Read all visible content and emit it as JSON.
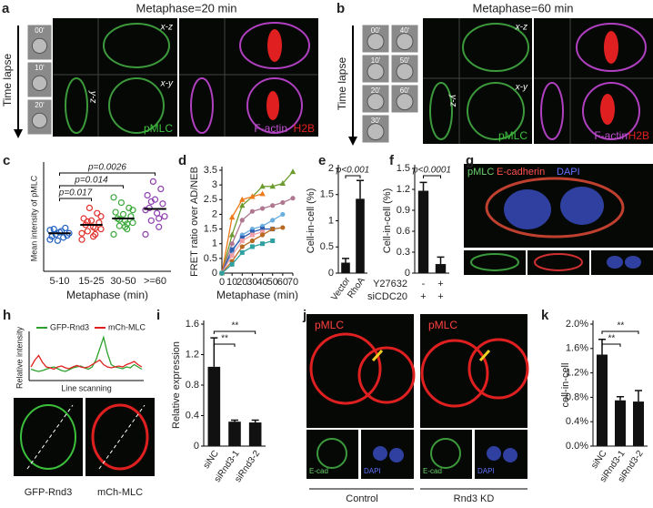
{
  "panels": {
    "a": {
      "label": "a",
      "title": "Metaphase=20 min",
      "time_axis": "Time lapse",
      "times": [
        "00'",
        "10'",
        "20'"
      ],
      "views": [
        "x-z",
        "x-y",
        "y-z"
      ],
      "stains": [
        "pMLC",
        "F-actin",
        "H2B"
      ]
    },
    "b": {
      "label": "b",
      "title": "Metaphase=60 min",
      "time_axis": "Time lapse",
      "times": [
        "00'",
        "10'",
        "20'",
        "30'",
        "40'",
        "50'",
        "60'"
      ],
      "views": [
        "x-z",
        "x-y",
        "y-z"
      ],
      "stains": [
        "pMLC",
        "F-actin",
        "H2B"
      ]
    },
    "g": {
      "label": "g",
      "stains": [
        "pMLC",
        "E-cadherin",
        "DAPI"
      ]
    },
    "h": {
      "image_labels": [
        "GFP-Rnd3",
        "mCh-MLC"
      ]
    },
    "j": {
      "label": "j",
      "stains": [
        "pMLC",
        "pMLC"
      ],
      "inset_labels": [
        "E-cad",
        "DAPI",
        "E-cad",
        "DAPI"
      ],
      "groups": [
        "Control",
        "Rnd3 KD"
      ]
    }
  },
  "chart_data": [
    {
      "type": "strip",
      "label": "c",
      "ylabel": "Mean intensity of pMLC",
      "xlabel": "Metaphase (min)",
      "categories": [
        "5-10",
        "15-25",
        "30-50",
        ">=60"
      ],
      "colors": [
        "#1f5fbf",
        "#e0302a",
        "#3aa83a",
        "#8e3fb0"
      ],
      "ylim": [
        0,
        100
      ],
      "points": [
        [
          30,
          32,
          35,
          36,
          38,
          40,
          34,
          37,
          33,
          41,
          29,
          39
        ],
        [
          30,
          35,
          38,
          40,
          42,
          44,
          46,
          48,
          50,
          55,
          60,
          36,
          41,
          47,
          52,
          33
        ],
        [
          35,
          40,
          43,
          46,
          48,
          50,
          52,
          54,
          56,
          60,
          65,
          70,
          45,
          49,
          58,
          42
        ],
        [
          35,
          42,
          48,
          52,
          55,
          60,
          64,
          68,
          72,
          78,
          85,
          58,
          50,
          66
        ]
      ],
      "means": [
        36,
        44,
        50,
        59
      ],
      "annotations": [
        "p=0.017",
        "p=0.014",
        "p=0.0026"
      ]
    },
    {
      "type": "line",
      "label": "d",
      "ylabel": "FRET ratio over AD/NEB",
      "xlabel": "Metaphase (min)",
      "x": [
        0,
        10,
        20,
        30,
        40,
        50,
        60,
        70
      ],
      "xlim": [
        0,
        70
      ],
      "xticks": [
        0,
        10,
        20,
        30,
        40,
        50,
        60,
        70
      ],
      "ylim": [
        0,
        3.5
      ],
      "yticks": [
        0,
        0.5,
        1,
        1.5,
        2,
        2.5,
        3,
        3.5
      ],
      "series": [
        {
          "color": "#6b9a2e",
          "marker": "triangle",
          "values": [
            0,
            1.3,
            2.3,
            2.6,
            2.95,
            2.95,
            3.05,
            3.45
          ]
        },
        {
          "color": "#f07a1a",
          "marker": "triangle",
          "values": [
            0,
            1.9,
            2.5,
            2.6,
            2.7,
            null,
            null,
            null
          ]
        },
        {
          "color": "#b07890",
          "marker": "circle",
          "values": [
            0,
            1.0,
            1.8,
            2.1,
            2.2,
            2.3,
            2.4,
            2.55
          ]
        },
        {
          "color": "#6aaee0",
          "marker": "circle",
          "values": [
            0,
            0.7,
            1.3,
            1.5,
            1.6,
            1.8,
            2.0,
            null
          ]
        },
        {
          "color": "#3060b0",
          "marker": "square",
          "values": [
            0,
            0.8,
            1.2,
            1.4,
            1.5,
            1.5,
            null,
            null
          ]
        },
        {
          "color": "#f0a0a8",
          "marker": "square",
          "values": [
            0,
            0.6,
            1.1,
            1.3,
            1.4,
            null,
            null,
            null
          ]
        },
        {
          "color": "#b86a20",
          "marker": "circle",
          "values": [
            0,
            0.4,
            0.9,
            1.1,
            1.3,
            1.5,
            1.55,
            null
          ]
        },
        {
          "color": "#30a0a0",
          "marker": "square",
          "values": [
            0,
            0.3,
            0.7,
            0.9,
            1.0,
            1.1,
            null,
            null
          ]
        }
      ]
    },
    {
      "type": "bar",
      "label": "e",
      "ylabel": "Cell-in-cell (%)",
      "categories": [
        "Vector",
        "RhoA"
      ],
      "values": [
        0.2,
        1.42
      ],
      "errors": [
        0.08,
        0.35
      ],
      "color": "#111111",
      "ylim": [
        0,
        2
      ],
      "yticks": [
        0,
        0.5,
        1,
        1.5,
        2
      ],
      "annotations": [
        "p<0.001"
      ]
    },
    {
      "type": "bar",
      "label": "f",
      "ylabel": "Cell-in-cell (%)",
      "rows": [
        {
          "name": "Y27632",
          "values": [
            "-",
            "+"
          ]
        },
        {
          "name": "siCDC20",
          "values": [
            "+",
            "+"
          ]
        }
      ],
      "values": [
        1.18,
        0.13
      ],
      "errors": [
        0.12,
        0.1
      ],
      "color": "#111111",
      "ylim": [
        0,
        1.5
      ],
      "yticks": [
        0,
        0.3,
        0.6,
        0.9,
        1.2,
        1.5
      ],
      "annotations": [
        "p<0.0001"
      ]
    },
    {
      "type": "line",
      "label": "h",
      "ylabel": "Relative intensity",
      "xlabel": "Line scanning",
      "ylim": [
        0,
        1
      ],
      "legend": "top",
      "series": [
        {
          "name": "GFP-Rnd3",
          "color": "#2ca02c",
          "values": [
            0.25,
            0.22,
            0.2,
            0.22,
            0.25,
            0.28,
            0.3,
            0.26,
            0.22,
            0.2,
            0.24,
            0.28,
            0.3,
            0.32,
            0.28,
            0.25,
            0.3,
            0.45,
            0.7,
            0.95,
            0.6,
            0.35,
            0.3,
            0.28,
            0.26,
            0.3,
            0.28,
            0.35,
            0.3,
            0.25
          ]
        },
        {
          "name": "mCh-MLC",
          "color": "#e02020",
          "values": [
            0.3,
            0.45,
            0.55,
            0.4,
            0.3,
            0.28,
            0.25,
            0.3,
            0.32,
            0.28,
            0.26,
            0.3,
            0.33,
            0.3,
            0.28,
            0.3,
            0.35,
            0.4,
            0.45,
            0.35,
            0.3,
            0.28,
            0.3,
            0.32,
            0.3,
            0.35,
            0.38,
            0.42,
            0.35,
            0.3
          ]
        }
      ]
    },
    {
      "type": "bar",
      "label": "i",
      "ylabel": "Relative expression",
      "categories": [
        "siNC",
        "siRnd3-1",
        "siRnd3-2"
      ],
      "values": [
        1.04,
        0.32,
        0.31
      ],
      "errors": [
        0.38,
        0.02,
        0.03
      ],
      "color": "#111111",
      "ylim": [
        0,
        1.6
      ],
      "yticks": [
        0,
        0.4,
        0.8,
        1.2,
        1.6
      ],
      "annotations": [
        "**",
        "**"
      ]
    },
    {
      "type": "bar",
      "label": "k",
      "ylabel": "cell-in-cell",
      "categories": [
        "siNC",
        "siRnd3-1",
        "siRnd3-2"
      ],
      "values": [
        1.5,
        0.75,
        0.73
      ],
      "errors": [
        0.25,
        0.06,
        0.18
      ],
      "color": "#111111",
      "ylim": [
        0,
        2
      ],
      "yticks": [
        {
          "value": 0,
          "label": "0.0%"
        },
        {
          "value": 0.4,
          "label": "0.4%"
        },
        {
          "value": 0.8,
          "label": "0.8%"
        },
        {
          "value": 1.2,
          "label": "1.2%"
        },
        {
          "value": 1.6,
          "label": "1.6%"
        },
        {
          "value": 2,
          "label": "2.0%"
        }
      ],
      "annotations": [
        "**",
        "**"
      ]
    }
  ]
}
